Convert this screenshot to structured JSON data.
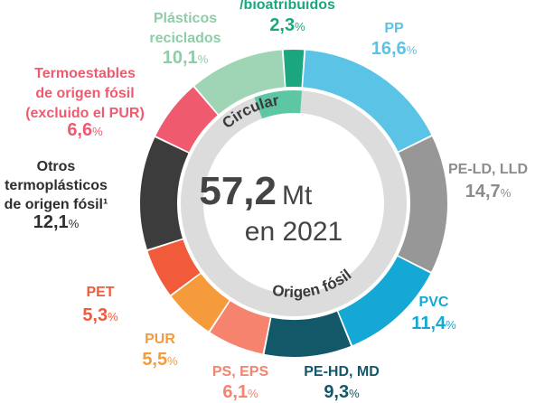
{
  "chart_data": {
    "type": "pie",
    "title": "",
    "center": {
      "value": "57,2",
      "unit": "Mt",
      "sub": "en 2021"
    },
    "ring_labels": {
      "circular": "Circular",
      "fossil": "Origen fósil"
    },
    "slices": [
      {
        "label": [
          "/bioatribuidos"
        ],
        "value": 2.3,
        "display": "2,3",
        "color": "#1aa77f",
        "group": "circular"
      },
      {
        "label": [
          "PP"
        ],
        "value": 16.6,
        "display": "16,6",
        "color": "#5bc4e6",
        "group": "fossil"
      },
      {
        "label": [
          "PE-LD, LLD"
        ],
        "value": 14.7,
        "display": "14,7",
        "color": "#979797",
        "group": "fossil"
      },
      {
        "label": [
          "PVC"
        ],
        "value": 11.4,
        "display": "11,4",
        "color": "#15a8d4",
        "group": "fossil"
      },
      {
        "label": [
          "PE-HD, MD"
        ],
        "value": 9.3,
        "display": "9,3",
        "color": "#135869",
        "group": "fossil"
      },
      {
        "label": [
          "PS, EPS"
        ],
        "value": 6.1,
        "display": "6,1",
        "color": "#f5836d",
        "group": "fossil"
      },
      {
        "label": [
          "PUR"
        ],
        "value": 5.5,
        "display": "5,5",
        "color": "#f59b3b",
        "group": "fossil"
      },
      {
        "label": [
          "PET"
        ],
        "value": 5.3,
        "display": "5,3",
        "color": "#f15a3a",
        "group": "fossil"
      },
      {
        "label": [
          "Otros",
          "termoplásticos",
          "de origen fósil¹"
        ],
        "value": 12.1,
        "display": "12,1",
        "color": "#3c3c3c",
        "group": "fossil"
      },
      {
        "label": [
          "Termoestables",
          "de origen fósil",
          "(excluido el PUR)"
        ],
        "value": 6.6,
        "display": "6,6",
        "color": "#f05a6e",
        "group": "fossil"
      },
      {
        "label": [
          "Plásticos",
          "reciclados"
        ],
        "value": 10.1,
        "display": "10,1",
        "color": "#9fd5b4",
        "group": "circular"
      }
    ],
    "percent_sign": "%",
    "colors": {
      "inner_ring_fossil": "#dcdcdc",
      "inner_ring_circular": "#5dc7a4",
      "center_text": "#444444"
    }
  }
}
